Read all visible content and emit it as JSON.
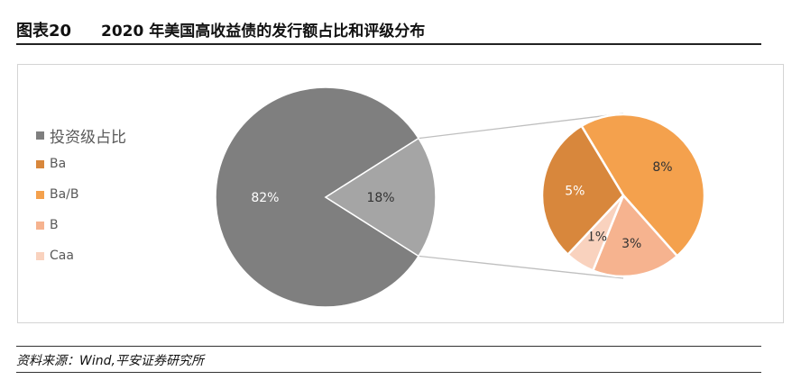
{
  "header": {
    "figure_number": "图表20",
    "title": "2020 年美国高收益债的发行额占比和评级分布"
  },
  "chart_data": [
    {
      "type": "pie",
      "slices": [
        {
          "label": "投资级占比",
          "value": 82,
          "text": "82%",
          "color": "#7f7f7f"
        },
        {
          "label": "",
          "value": 18,
          "text": "18%",
          "color": "#a5a5a5"
        }
      ]
    },
    {
      "type": "pie",
      "slices": [
        {
          "label": "Ba/B",
          "value": 8,
          "text": "8%",
          "color": "#f4a14d"
        },
        {
          "label": "B",
          "value": 3,
          "text": "3%",
          "color": "#f6b38f"
        },
        {
          "label": "Caa",
          "value": 1,
          "text": "1%",
          "color": "#f9d2be"
        },
        {
          "label": "Ba",
          "value": 5,
          "text": "5%",
          "color": "#d8873c"
        }
      ]
    }
  ],
  "legend": [
    {
      "label": "投资级占比",
      "color": "#7f7f7f"
    },
    {
      "label": "Ba",
      "color": "#d8873c"
    },
    {
      "label": "Ba/B",
      "color": "#f4a14d"
    },
    {
      "label": "B",
      "color": "#f6b38f"
    },
    {
      "label": "Caa",
      "color": "#f9d2be"
    }
  ],
  "footer": {
    "source": "资料来源：Wind,平安证券研究所"
  }
}
